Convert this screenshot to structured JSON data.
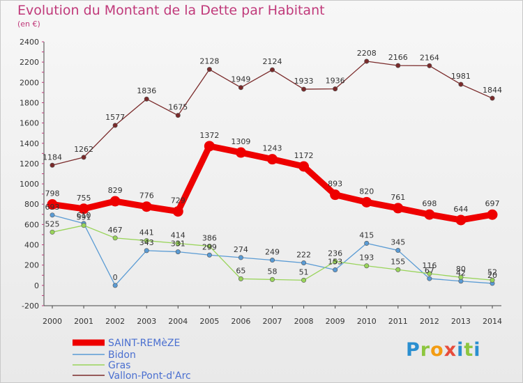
{
  "header": {
    "title": "Evolution du Montant de la Dette par Habitant",
    "subtitle": "(en €)"
  },
  "logo": {
    "text": "Proxiti"
  },
  "chart_data": {
    "type": "line",
    "title": "Evolution du Montant de la Dette par Habitant",
    "ylabel": "(en €)",
    "x": [
      2000,
      2001,
      2002,
      2003,
      2004,
      2005,
      2006,
      2007,
      2008,
      2009,
      2010,
      2011,
      2012,
      2013,
      2014
    ],
    "yticks": [
      -200,
      0,
      200,
      400,
      600,
      800,
      1000,
      1200,
      1400,
      1600,
      1800,
      2000,
      2200,
      2400
    ],
    "ylim": [
      -200,
      2400
    ],
    "grid": false,
    "legend_position": "bottom-left",
    "series": [
      {
        "name": "SAINT-REMèZE",
        "color": "#ee0000",
        "values": [
          798,
          755,
          829,
          776,
          729,
          1372,
          1309,
          1243,
          1172,
          893,
          820,
          761,
          698,
          644,
          697
        ]
      },
      {
        "name": "Bidon",
        "color": "#5a9bd4",
        "values": [
          693,
          610,
          0,
          343,
          331,
          299,
          274,
          249,
          222,
          153,
          415,
          345,
          67,
          42,
          20
        ]
      },
      {
        "name": "Gras",
        "color": "#99d45a",
        "values": [
          525,
          591,
          467,
          441,
          414,
          386,
          65,
          58,
          51,
          236,
          193,
          155,
          116,
          80,
          52
        ]
      },
      {
        "name": "Vallon-Pont-d'Arc",
        "color": "#7a2a2a",
        "values": [
          1184,
          1262,
          1577,
          1836,
          1675,
          2128,
          1949,
          2124,
          1933,
          1936,
          2208,
          2166,
          2164,
          1981,
          1844
        ]
      }
    ]
  }
}
